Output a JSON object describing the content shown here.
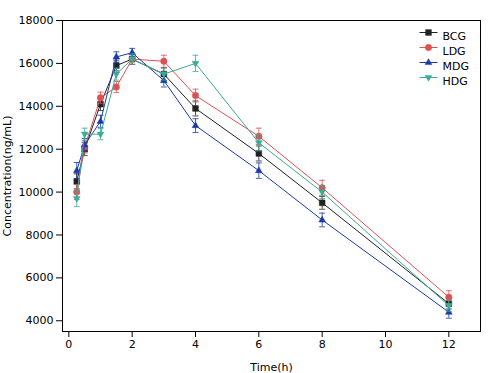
{
  "chart_data": {
    "type": "line",
    "xlabel": "Time(h)",
    "ylabel": "Concentration(ng/mL)",
    "x": [
      0.25,
      0.5,
      1.0,
      1.5,
      2.0,
      3.0,
      4.0,
      6.0,
      8.0,
      12.0
    ],
    "series": [
      {
        "name": "BCG",
        "color": "#222222",
        "marker": "square",
        "values": [
          10500,
          12000,
          14100,
          15900,
          16200,
          15500,
          13900,
          11800,
          9500,
          4800
        ],
        "yerr": [
          350,
          300,
          300,
          250,
          250,
          300,
          350,
          350,
          300,
          250
        ]
      },
      {
        "name": "LDG",
        "color": "#e05050",
        "marker": "circle",
        "values": [
          10000,
          12100,
          14400,
          14900,
          16200,
          16100,
          14500,
          12600,
          10200,
          5100
        ],
        "yerr": [
          350,
          280,
          260,
          260,
          240,
          280,
          300,
          380,
          350,
          300
        ]
      },
      {
        "name": "MDG",
        "color": "#1a3aaa",
        "marker": "triangle-up",
        "values": [
          11000,
          12200,
          13300,
          16300,
          16500,
          15200,
          13100,
          11000,
          8700,
          4400
        ],
        "yerr": [
          380,
          300,
          280,
          240,
          200,
          300,
          320,
          360,
          320,
          280
        ]
      },
      {
        "name": "HDG",
        "color": "#3aaa99",
        "marker": "triangle-down",
        "values": [
          9700,
          12700,
          12700,
          15500,
          16200,
          15500,
          16000,
          12300,
          10000,
          4700
        ],
        "yerr": [
          380,
          280,
          260,
          280,
          240,
          280,
          380,
          380,
          300,
          260
        ]
      }
    ],
    "xlim": [
      -0.2,
      13
    ],
    "ylim": [
      3500,
      18000
    ],
    "xticks": [
      0,
      2,
      4,
      6,
      8,
      10,
      12
    ],
    "yticks": [
      4000,
      6000,
      8000,
      10000,
      12000,
      14000,
      16000,
      18000
    ],
    "legend": "upper right"
  }
}
